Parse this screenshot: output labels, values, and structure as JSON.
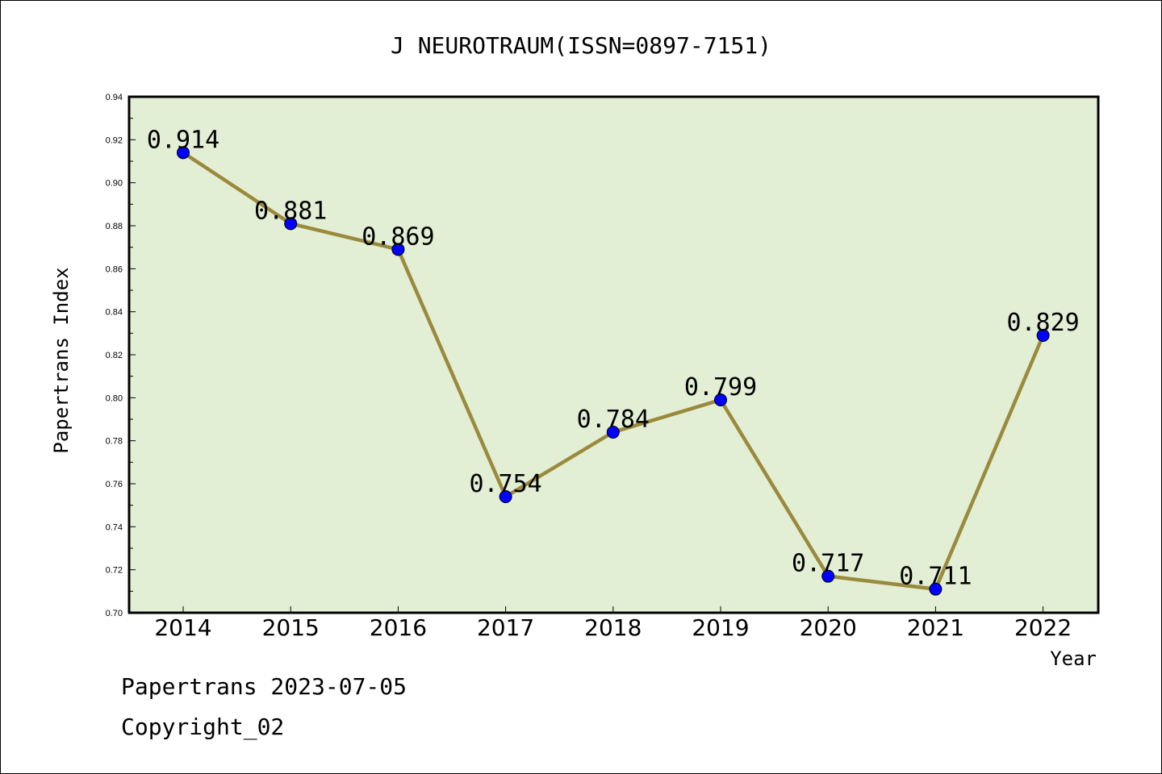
{
  "chart_data": {
    "type": "line",
    "title": "J NEUROTRAUM(ISSN=0897-7151)",
    "xlabel": "Year",
    "ylabel": "Papertrans Index",
    "categories": [
      "2014",
      "2015",
      "2016",
      "2017",
      "2018",
      "2019",
      "2020",
      "2021",
      "2022"
    ],
    "values": [
      0.914,
      0.881,
      0.869,
      0.754,
      0.784,
      0.799,
      0.717,
      0.711,
      0.829
    ],
    "data_labels": [
      "0.914",
      "0.881",
      "0.869",
      "0.754",
      "0.784",
      "0.799",
      "0.717",
      "0.711",
      "0.829"
    ],
    "ylim": [
      0.7,
      0.94
    ],
    "yticks": [
      0.7,
      0.72,
      0.74,
      0.76,
      0.78,
      0.8,
      0.82,
      0.84,
      0.86,
      0.88,
      0.9,
      0.92,
      0.94
    ],
    "ytick_labels": [
      "0.70",
      "0.72",
      "0.74",
      "0.76",
      "0.78",
      "0.80",
      "0.82",
      "0.84",
      "0.86",
      "0.88",
      "0.90",
      "0.92",
      "0.94"
    ],
    "grid": false,
    "legend": "none",
    "colors": {
      "plot_background": "#e2efd5",
      "line": "#9a8a3c",
      "marker": "#0000ff"
    }
  },
  "footer": {
    "line1": "Papertrans 2023-07-05",
    "line2": "Copyright_02"
  }
}
